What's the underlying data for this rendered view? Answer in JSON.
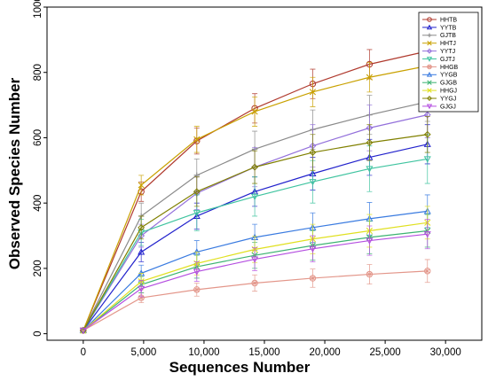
{
  "chart_data": {
    "type": "line",
    "xlabel": "Sequences Number",
    "ylabel": "Observed Species Number",
    "xlim": [
      -3000,
      33000
    ],
    "ylim": [
      -20,
      1000
    ],
    "x_ticks": [
      0,
      5000,
      10000,
      15000,
      20000,
      25000,
      30000
    ],
    "x_tick_labels": [
      "0",
      "5,000",
      "10,000",
      "15,000",
      "20,000",
      "25,000",
      "30,000"
    ],
    "y_ticks": [
      0,
      200,
      400,
      600,
      800,
      1000
    ],
    "y_tick_labels": [
      "0",
      "200",
      "400",
      "600",
      "800",
      "1000"
    ],
    "x": [
      0,
      4800,
      9400,
      14200,
      19000,
      23700,
      28500
    ],
    "legend_position": "top-right",
    "grid": false,
    "series": [
      {
        "name": "HHTB",
        "color": "#b03a2e",
        "marker": "circle",
        "values": [
          10,
          435,
          590,
          690,
          765,
          825,
          865
        ],
        "err": [
          0,
          30,
          40,
          45,
          45,
          45,
          45
        ]
      },
      {
        "name": "YYTB",
        "color": "#2222cc",
        "marker": "triangle-up",
        "values": [
          10,
          250,
          360,
          435,
          490,
          540,
          580
        ],
        "err": [
          0,
          30,
          40,
          45,
          50,
          55,
          60
        ]
      },
      {
        "name": "GJTB",
        "color": "#8a8a8a",
        "marker": "plus",
        "values": [
          10,
          360,
          485,
          565,
          625,
          670,
          710
        ],
        "err": [
          0,
          40,
          50,
          55,
          60,
          60,
          60
        ]
      },
      {
        "name": "HHTJ",
        "color": "#c9a100",
        "marker": "cross",
        "values": [
          10,
          455,
          595,
          680,
          740,
          785,
          820
        ],
        "err": [
          0,
          30,
          40,
          45,
          45,
          45,
          45
        ]
      },
      {
        "name": "YYTJ",
        "color": "#9370db",
        "marker": "diamond",
        "values": [
          10,
          300,
          430,
          510,
          575,
          630,
          670
        ],
        "err": [
          0,
          35,
          50,
          60,
          65,
          70,
          70
        ]
      },
      {
        "name": "GJTJ",
        "color": "#40c4a0",
        "marker": "triangle-down",
        "values": [
          10,
          310,
          370,
          420,
          465,
          505,
          535
        ],
        "err": [
          0,
          40,
          55,
          60,
          65,
          70,
          75
        ]
      },
      {
        "name": "HHGB",
        "color": "#e3968a",
        "marker": "circle-x",
        "values": [
          10,
          110,
          135,
          155,
          170,
          182,
          192
        ],
        "err": [
          0,
          15,
          20,
          25,
          28,
          30,
          35
        ]
      },
      {
        "name": "YYGB",
        "color": "#3a7be0",
        "marker": "triangle-up",
        "values": [
          10,
          185,
          250,
          295,
          325,
          352,
          375
        ],
        "err": [
          0,
          25,
          35,
          40,
          45,
          50,
          50
        ]
      },
      {
        "name": "GJGB",
        "color": "#3cb371",
        "marker": "cross",
        "values": [
          10,
          150,
          205,
          240,
          270,
          295,
          315
        ],
        "err": [
          0,
          25,
          35,
          40,
          45,
          50,
          50
        ]
      },
      {
        "name": "HHGJ",
        "color": "#e0e020",
        "marker": "cross",
        "values": [
          10,
          160,
          215,
          258,
          290,
          315,
          340
        ],
        "err": [
          0,
          25,
          35,
          40,
          45,
          50,
          50
        ]
      },
      {
        "name": "YYGJ",
        "color": "#808000",
        "marker": "diamond",
        "values": [
          10,
          325,
          435,
          510,
          555,
          585,
          610
        ],
        "err": [
          0,
          35,
          45,
          50,
          55,
          55,
          55
        ]
      },
      {
        "name": "GJGJ",
        "color": "#b44ee0",
        "marker": "triangle-down",
        "values": [
          10,
          138,
          190,
          228,
          260,
          285,
          305
        ],
        "err": [
          0,
          25,
          30,
          35,
          40,
          45,
          45
        ]
      }
    ]
  }
}
